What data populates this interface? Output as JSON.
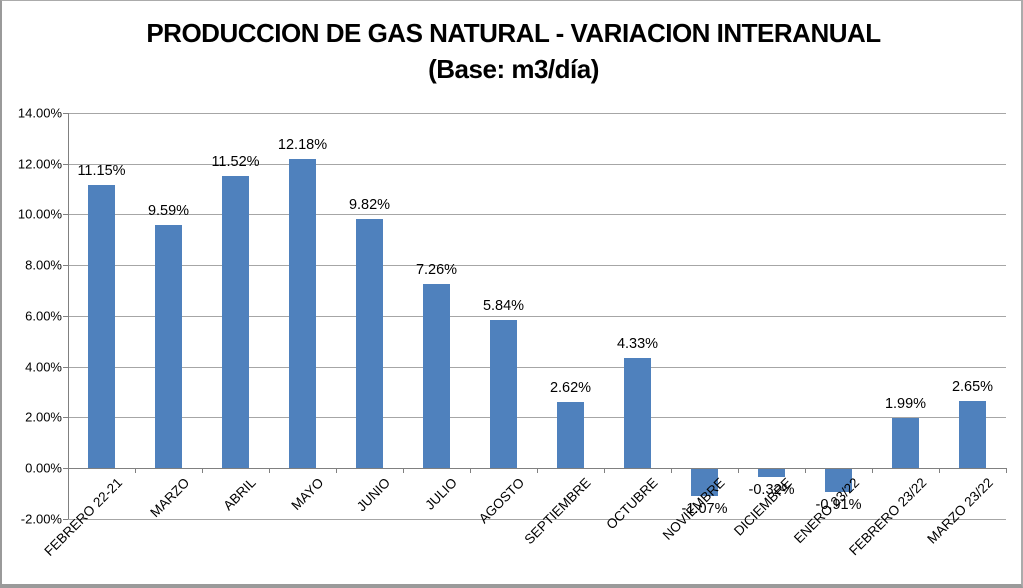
{
  "chart_data": {
    "type": "bar",
    "title": "PRODUCCION DE GAS NATURAL - VARIACION INTERANUAL",
    "subtitle": "(Base: m3/día)",
    "categories": [
      "FEBRERO 22-21",
      "MARZO",
      "ABRIL",
      "MAYO",
      "JUNIO",
      "JULIO",
      "AGOSTO",
      "SEPTIEMBRE",
      "OCTUBRE",
      "NOVIEMBRE",
      "DICIEMBRE",
      "ENERO 23/22",
      "FEBRERO 23/22",
      "MARZO 23/22"
    ],
    "values": [
      11.15,
      9.59,
      11.52,
      12.18,
      9.82,
      7.26,
      5.84,
      2.62,
      4.33,
      -1.07,
      -0.32,
      -0.91,
      1.99,
      2.65
    ],
    "data_labels": [
      "11.15%",
      "9.59%",
      "11.52%",
      "12.18%",
      "9.82%",
      "7.26%",
      "5.84%",
      "2.62%",
      "4.33%",
      "-1.07%",
      "-0.32%",
      "-0.91%",
      "1.99%",
      "2.65%"
    ],
    "ylabel": "",
    "xlabel": "",
    "ylim": [
      -2,
      14
    ],
    "ytick_step": 2,
    "ytick_labels": [
      "14.00%",
      "12.00%",
      "10.00%",
      "8.00%",
      "6.00%",
      "4.00%",
      "2.00%",
      "0.00%",
      "-2.00%"
    ],
    "grid": true,
    "legend": "none",
    "bar_color": "#4f81bd"
  },
  "colors": {
    "bar": "#4f81bd",
    "gridline": "#a6a6a6",
    "axis": "#808080",
    "text": "#000000"
  }
}
